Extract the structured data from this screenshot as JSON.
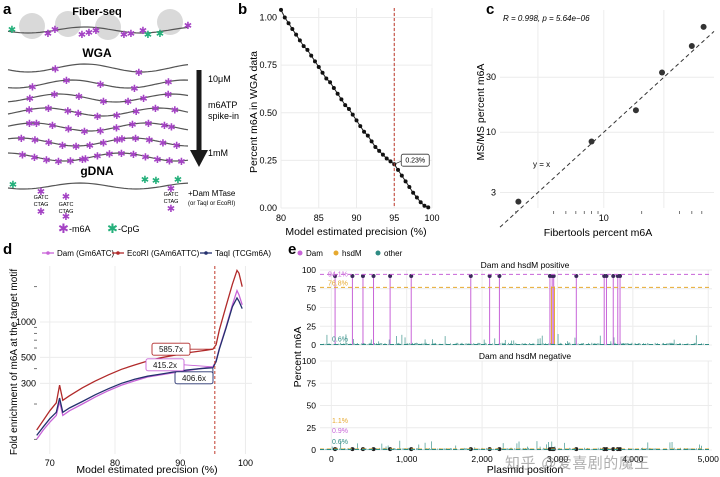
{
  "colors": {
    "purple": "#a443c4",
    "green": "#25b07b",
    "dam": "#c864d8",
    "hsdm": "#e6a92f",
    "other": "#2e8b83",
    "ecori": "#b12a2a",
    "taqi": "#24306e",
    "redline": "#c0392b",
    "nuc": "#d9d9d9"
  },
  "panels": {
    "a": "a",
    "b": "b",
    "c": "c",
    "d": "d",
    "e": "e"
  },
  "panel_a": {
    "fiberseq": "Fiber-seq",
    "wga": "WGA",
    "conc_top": "10μM",
    "spike_line1": "m6ATP",
    "spike_line2": "spike-in",
    "conc_bottom": "1mM",
    "gdna": "gDNA",
    "gatc": "GATC",
    "ctag": "CTAG",
    "mtase_line1": "+Dam MTase",
    "mtase_line2": "(or TaqI or EcoRI)",
    "legend_m6a": "-m6A",
    "legend_cpg": "-CpG",
    "star_glyph": "✱"
  },
  "chart_data": [
    {
      "panel": "b",
      "type": "scatter",
      "xlabel": "Model estimated precision (%)",
      "ylabel": "Percent m6A in WGA data",
      "xlim": [
        80,
        100
      ],
      "ylim": [
        0,
        1.05
      ],
      "x_ticks": [
        "80",
        "85",
        "90",
        "95",
        "100"
      ],
      "y_ticks": [
        "0.00",
        "0.25",
        "0.50",
        "0.75",
        "1.00"
      ],
      "x": [
        80.0,
        80.5,
        81.0,
        81.5,
        82.0,
        82.5,
        83.0,
        83.5,
        84.0,
        84.5,
        85.0,
        85.5,
        86.0,
        86.5,
        87.0,
        87.5,
        88.0,
        88.5,
        89.0,
        89.5,
        90.0,
        90.5,
        91.0,
        91.5,
        92.0,
        92.5,
        93.0,
        93.5,
        94.0,
        94.5,
        95.0,
        95.5,
        96.0,
        96.5,
        97.0,
        97.5,
        98.0,
        98.5,
        99.0,
        99.5
      ],
      "y": [
        1.04,
        1.0,
        0.97,
        0.94,
        0.91,
        0.88,
        0.85,
        0.83,
        0.8,
        0.77,
        0.74,
        0.71,
        0.68,
        0.66,
        0.63,
        0.6,
        0.57,
        0.54,
        0.52,
        0.49,
        0.46,
        0.43,
        0.4,
        0.38,
        0.35,
        0.32,
        0.3,
        0.28,
        0.26,
        0.245,
        0.23,
        0.2,
        0.17,
        0.14,
        0.11,
        0.08,
        0.055,
        0.03,
        0.012,
        0.003
      ],
      "vline": 95,
      "annotation": "0.23%"
    },
    {
      "panel": "c",
      "type": "scatter",
      "xlabel": "Fibertools percent m6A",
      "ylabel": "MS/MS percent m6A",
      "scale": "log",
      "xlim": [
        1.5,
        75
      ],
      "ylim": [
        2.2,
        115
      ],
      "x_ticks": [
        "10"
      ],
      "y_ticks": [
        "3",
        "10",
        "30"
      ],
      "x": [
        2.1,
        8.0,
        18.0,
        29.0,
        50.0,
        62.0
      ],
      "y": [
        2.5,
        8.3,
        15.5,
        33.0,
        56.0,
        82.0
      ],
      "stat": "R = 0.998, p = 5.64e−06",
      "line_label": "y = x"
    },
    {
      "panel": "d",
      "type": "line",
      "xlabel": "Model estimated precision (%)",
      "ylabel": "Fold enrichment of m6A at the target motif",
      "scale_y": "log",
      "xlim": [
        68.5,
        101
      ],
      "ylim": [
        75,
        3000
      ],
      "x_ticks": [
        "70",
        "80",
        "90",
        "100"
      ],
      "y_ticks": [
        "300",
        "500",
        "1000"
      ],
      "vline": 95.3,
      "series": [
        {
          "name": "Dam (Gm6ATC)",
          "x": [
            68,
            69,
            70,
            71,
            71.5,
            72,
            73,
            75,
            77,
            79,
            81,
            83,
            85,
            87,
            89,
            91,
            93,
            94,
            95,
            95.5,
            96,
            97,
            98,
            98.7,
            99,
            99.5
          ],
          "y": [
            100,
            120,
            140,
            160,
            210,
            160,
            175,
            200,
            230,
            260,
            290,
            315,
            340,
            355,
            370,
            385,
            400,
            408,
            415,
            470,
            600,
            900,
            1400,
            1850,
            1700,
            1400
          ]
        },
        {
          "name": "EcoRI (GAm6ATTC)",
          "x": [
            68,
            69,
            70,
            71,
            71.5,
            72,
            73,
            75,
            77,
            79,
            81,
            83,
            85,
            87,
            89,
            91,
            93,
            94,
            95,
            95.5,
            96,
            97,
            98,
            98.7,
            99,
            99.5
          ],
          "y": [
            120,
            145,
            175,
            205,
            290,
            215,
            235,
            275,
            315,
            355,
            395,
            430,
            465,
            495,
            520,
            545,
            565,
            575,
            586,
            640,
            860,
            1350,
            2100,
            2750,
            2600,
            2000
          ]
        },
        {
          "name": "TaqI (TCGm6A)",
          "x": [
            68,
            69,
            70,
            71,
            71.5,
            72,
            73,
            75,
            77,
            79,
            81,
            83,
            85,
            87,
            89,
            91,
            93,
            94,
            95,
            95.5,
            96,
            97,
            98,
            98.7,
            99,
            99.5
          ],
          "y": [
            108,
            128,
            150,
            170,
            225,
            170,
            185,
            210,
            240,
            270,
            300,
            325,
            345,
            360,
            375,
            390,
            400,
            404,
            407,
            460,
            590,
            880,
            1350,
            1600,
            1500,
            1300
          ]
        }
      ],
      "labels": [
        "585.7x",
        "415.2x",
        "406.6x"
      ]
    },
    {
      "panel": "e",
      "type": "bar",
      "xlabel": "Plasmid position",
      "ylabel": "Percent m6A",
      "xlim": [
        -150,
        5050
      ],
      "ylim": [
        0,
        100
      ],
      "x_ticks": [
        "0",
        "1,000",
        "2,000",
        "3,000",
        "4,000",
        "5,000"
      ],
      "y_ticks": [
        "0",
        "25",
        "50",
        "75",
        "100"
      ],
      "legend": [
        "Dam",
        "hsdM",
        "other"
      ],
      "facets": [
        "Dam and hsdM positive",
        "Dam and hsdM negative"
      ],
      "dam_sites": [
        50,
        280,
        420,
        560,
        780,
        1060,
        1850,
        2100,
        2230,
        2900,
        2930,
        2950,
        3250,
        3620,
        3650,
        3740,
        3800,
        3830
      ],
      "hsdm_sites": [
        2920,
        2960
      ],
      "positive_lines": {
        "dam": 94.1,
        "hsdm": 76.8,
        "other": 0.6
      },
      "negative_lines": {
        "dam": 0.9,
        "hsdm": 1.1,
        "other": 0.6
      },
      "positive_labels": [
        "94.1%",
        "76.8%",
        "0.6%"
      ],
      "negative_labels": [
        "1.1%",
        "0.9%",
        "0.6%"
      ]
    }
  ],
  "watermark": "知乎 @爱喜剧的魔王"
}
